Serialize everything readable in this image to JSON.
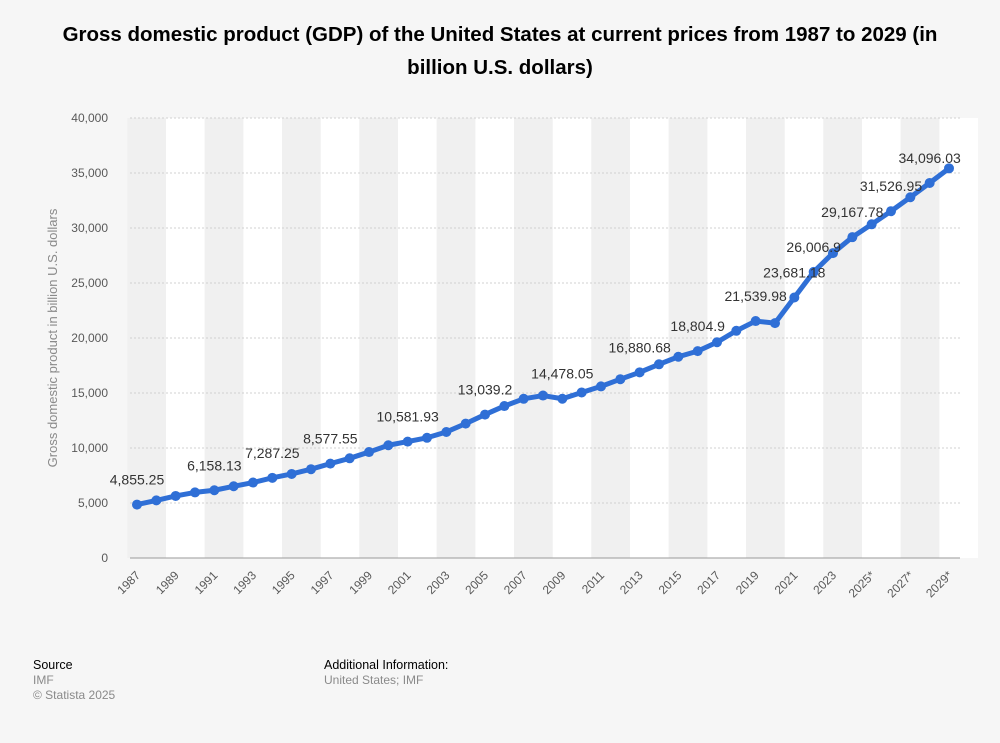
{
  "chart_data": {
    "type": "line",
    "title": "Gross domestic product (GDP) of the United States at current prices from 1987 to 2029 (in billion U.S. dollars)",
    "ylabel": "Gross domestic product in billion U.S. dollars",
    "xlabel": "",
    "ylim": [
      0,
      40000
    ],
    "yticks": [
      0,
      5000,
      10000,
      15000,
      20000,
      25000,
      30000,
      35000,
      40000
    ],
    "ytick_labels": [
      "0",
      "5,000",
      "10,000",
      "15,000",
      "20,000",
      "25,000",
      "30,000",
      "35,000",
      "40,000"
    ],
    "xtick_labels": [
      "1987",
      "1989",
      "1991",
      "1993",
      "1995",
      "1997",
      "1999",
      "2001",
      "2003",
      "2005",
      "2007",
      "2009",
      "2011",
      "2013",
      "2015",
      "2017",
      "2019",
      "2021",
      "2023",
      "2025*",
      "2027*",
      "2029*"
    ],
    "grid": true,
    "legend": "none",
    "series_color": "#2f6fd6",
    "x": [
      "1987",
      "1988",
      "1989",
      "1990",
      "1991",
      "1992",
      "1993",
      "1994",
      "1995",
      "1996",
      "1997",
      "1998",
      "1999",
      "2000",
      "2001",
      "2002",
      "2003",
      "2004",
      "2005",
      "2006",
      "2007",
      "2008",
      "2009",
      "2010",
      "2011",
      "2012",
      "2013",
      "2014",
      "2015",
      "2016",
      "2017",
      "2018",
      "2019",
      "2020",
      "2021",
      "2022",
      "2023",
      "2024*",
      "2025*",
      "2026*",
      "2027*",
      "2028*",
      "2029*"
    ],
    "values": [
      4855.25,
      5236.44,
      5641.58,
      5963.14,
      6158.13,
      6520.33,
      6858.56,
      7287.25,
      7639.75,
      8073.12,
      8577.55,
      9062.82,
      9631.17,
      10250.95,
      10581.93,
      10929.1,
      11456.45,
      12217.2,
      13039.2,
      13815.58,
      14474.23,
      14769.86,
      14478.05,
      15048.97,
      15599.73,
      16253.97,
      16880.68,
      17608.14,
      18295.02,
      18804.9,
      19612.1,
      20656.52,
      21539.98,
      21354.1,
      23681.18,
      26006.9,
      27720.7,
      29167.78,
      30337.16,
      31526.95,
      32795.0,
      34096.03,
      35425.0
    ],
    "data_labels": [
      {
        "index": 0,
        "text": "4,855.25"
      },
      {
        "index": 4,
        "text": "6,158.13"
      },
      {
        "index": 7,
        "text": "7,287.25"
      },
      {
        "index": 10,
        "text": "8,577.55"
      },
      {
        "index": 14,
        "text": "10,581.93"
      },
      {
        "index": 18,
        "text": "13,039.2"
      },
      {
        "index": 22,
        "text": "14,478.05"
      },
      {
        "index": 26,
        "text": "16,880.68"
      },
      {
        "index": 29,
        "text": "18,804.9"
      },
      {
        "index": 32,
        "text": "21,539.98"
      },
      {
        "index": 34,
        "text": "23,681.18"
      },
      {
        "index": 35,
        "text": "26,006.9"
      },
      {
        "index": 37,
        "text": "29,167.78"
      },
      {
        "index": 39,
        "text": "31,526.95"
      },
      {
        "index": 41,
        "text": "34,096.03"
      }
    ]
  },
  "footer": {
    "source_heading": "Source",
    "source_lines": [
      "IMF",
      "© Statista 2025"
    ],
    "additional_heading": "Additional Information:",
    "additional_text": "United States; IMF"
  }
}
